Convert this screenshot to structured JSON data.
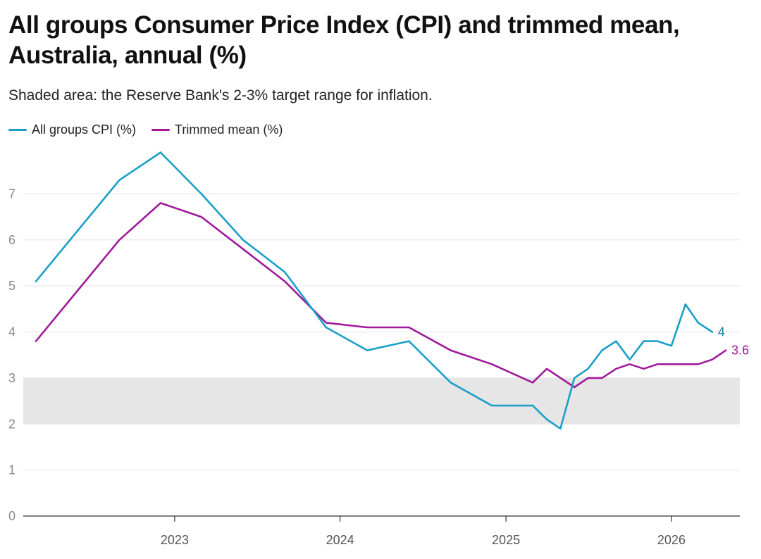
{
  "title": "All groups Consumer Price Index (CPI) and trimmed mean, Australia, annual (%)",
  "subtitle": "Shaded area: the Reserve Bank's 2-3% target range for inflation.",
  "colors": {
    "cpi": "#1a9fc9",
    "trimmed": "#a0199b",
    "band": "#e6e6e6",
    "grid": "#e3e3e3",
    "axis": "#333333"
  },
  "chart_data": {
    "type": "line",
    "grid": true,
    "legend_position": "top-left",
    "ylim": [
      0,
      8
    ],
    "yticks": [
      0,
      1,
      2,
      3,
      4,
      5,
      6,
      7
    ],
    "xlim": [
      "2022-02-01",
      "2026-06-01"
    ],
    "xticks": [
      {
        "label": "2023",
        "date": "2023-01-01"
      },
      {
        "label": "2024",
        "date": "2024-01-01"
      },
      {
        "label": "2025",
        "date": "2025-01-01"
      },
      {
        "label": "2026",
        "date": "2026-01-01"
      }
    ],
    "target_band": [
      2,
      3
    ],
    "series": [
      {
        "name": "All groups CPI (%)",
        "end_label": "4",
        "points": [
          [
            "2022-03-01",
            5.1
          ],
          [
            "2022-09-01",
            7.3
          ],
          [
            "2022-12-01",
            7.9
          ],
          [
            "2023-03-01",
            7.0
          ],
          [
            "2023-06-01",
            6.0
          ],
          [
            "2023-09-01",
            5.3
          ],
          [
            "2023-12-01",
            4.1
          ],
          [
            "2024-03-01",
            3.6
          ],
          [
            "2024-06-01",
            3.8
          ],
          [
            "2024-09-01",
            2.9
          ],
          [
            "2024-12-01",
            2.4
          ],
          [
            "2025-01-01",
            2.4
          ],
          [
            "2025-02-01",
            2.4
          ],
          [
            "2025-03-01",
            2.4
          ],
          [
            "2025-04-01",
            2.1
          ],
          [
            "2025-05-01",
            1.9
          ],
          [
            "2025-06-01",
            3.0
          ],
          [
            "2025-07-01",
            3.2
          ],
          [
            "2025-08-01",
            3.6
          ],
          [
            "2025-09-01",
            3.8
          ],
          [
            "2025-10-01",
            3.4
          ],
          [
            "2025-11-01",
            3.8
          ],
          [
            "2025-12-01",
            3.8
          ],
          [
            "2026-01-01",
            3.7
          ],
          [
            "2026-02-01",
            4.6
          ],
          [
            "2026-03-01",
            4.2
          ],
          [
            "2026-04-01",
            4.0
          ]
        ]
      },
      {
        "name": "Trimmed mean (%)",
        "end_label": "3.6",
        "points": [
          [
            "2022-03-01",
            3.8
          ],
          [
            "2022-09-01",
            6.0
          ],
          [
            "2022-12-01",
            6.8
          ],
          [
            "2023-03-01",
            6.5
          ],
          [
            "2023-06-01",
            5.8
          ],
          [
            "2023-09-01",
            5.1
          ],
          [
            "2023-12-01",
            4.2
          ],
          [
            "2024-03-01",
            4.1
          ],
          [
            "2024-06-01",
            4.1
          ],
          [
            "2024-09-01",
            3.6
          ],
          [
            "2024-12-01",
            3.3
          ],
          [
            "2025-03-01",
            2.9
          ],
          [
            "2025-04-01",
            3.2
          ],
          [
            "2025-06-01",
            2.8
          ],
          [
            "2025-07-01",
            3.0
          ],
          [
            "2025-08-01",
            3.0
          ],
          [
            "2025-09-01",
            3.2
          ],
          [
            "2025-10-01",
            3.3
          ],
          [
            "2025-11-01",
            3.2
          ],
          [
            "2025-12-01",
            3.3
          ],
          [
            "2026-01-01",
            3.3
          ],
          [
            "2026-02-01",
            3.3
          ],
          [
            "2026-03-01",
            3.3
          ],
          [
            "2026-04-01",
            3.4
          ],
          [
            "2026-05-01",
            3.6
          ]
        ]
      }
    ]
  }
}
